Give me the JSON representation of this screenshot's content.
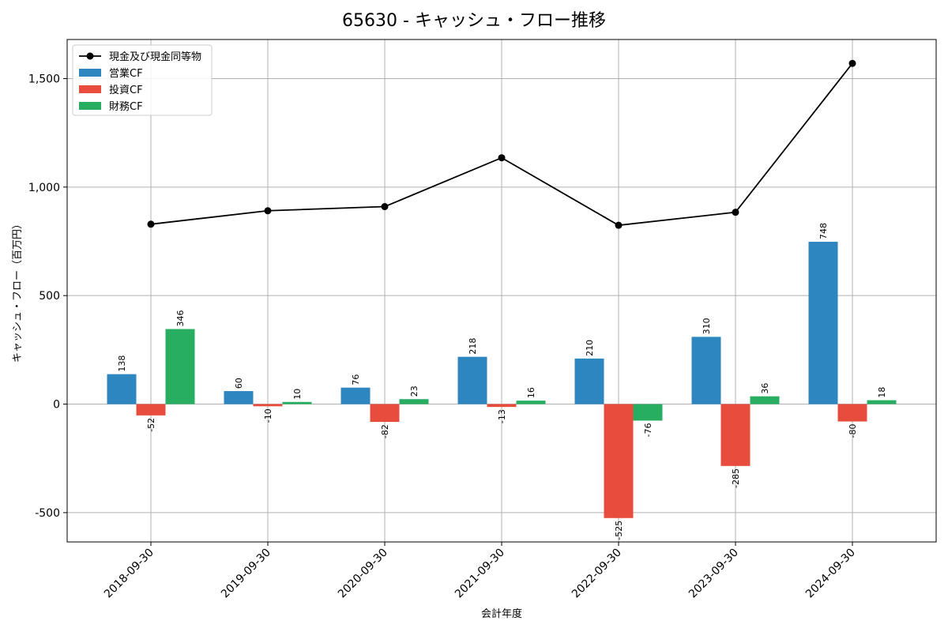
{
  "chart_data": {
    "type": "bar",
    "title": "65630 - キャッシュ・フロー推移",
    "xlabel": "会計年度",
    "ylabel": "キャッシュ・フロー（百万円）",
    "ylim": [
      -635,
      1680
    ],
    "yticks": [
      -500,
      0,
      500,
      1000,
      1500
    ],
    "ytick_labels": [
      "-500",
      "0",
      "500",
      "1,000",
      "1,500"
    ],
    "grid": true,
    "legend_position": "top-left",
    "categories": [
      "2018-09-30",
      "2019-09-30",
      "2020-09-30",
      "2021-09-30",
      "2022-09-30",
      "2023-09-30",
      "2024-09-30"
    ],
    "series": [
      {
        "name": "営業CF",
        "kind": "bar",
        "color": "#2e86c1",
        "values": [
          138,
          60,
          76,
          218,
          210,
          310,
          748
        ],
        "labels": [
          "138",
          "60",
          "76",
          "218",
          "210",
          "310",
          "748"
        ]
      },
      {
        "name": "投資CF",
        "kind": "bar",
        "color": "#e74c3c",
        "values": [
          -52,
          -10,
          -82,
          -13,
          -525,
          -285,
          -80
        ],
        "labels": [
          "-52",
          "-10",
          "-82",
          "-13",
          "-525",
          "-285",
          "-80"
        ]
      },
      {
        "name": "財務CF",
        "kind": "bar",
        "color": "#27ae60",
        "values": [
          346,
          10,
          23,
          16,
          -76,
          36,
          18
        ],
        "labels": [
          "346",
          "10",
          "23",
          "16",
          "-76",
          "36",
          "18"
        ]
      }
    ],
    "line_series": {
      "name": "現金及び現金同等物",
      "kind": "line",
      "color": "#000000",
      "values": [
        829,
        891,
        910,
        1135,
        824,
        884,
        1570
      ]
    },
    "legend_order": [
      "現金及び現金同等物",
      "営業CF",
      "投資CF",
      "財務CF"
    ]
  }
}
